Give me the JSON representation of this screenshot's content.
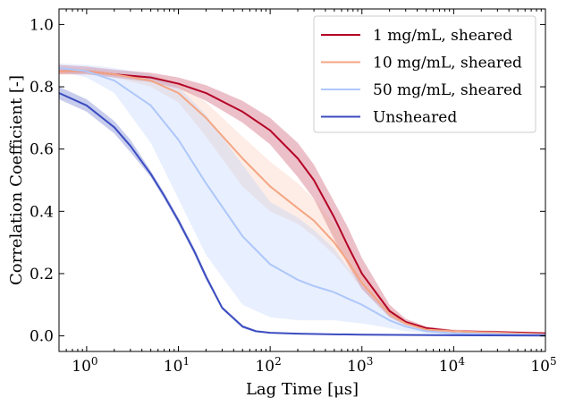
{
  "chart_data": {
    "type": "line",
    "xlabel": "Lag Time [μs]",
    "ylabel": "Correlation Coefficient [-]",
    "xscale": "log",
    "xlim": [
      0.5,
      100000
    ],
    "ylim": [
      -0.05,
      1.05
    ],
    "x_ticks": [
      1,
      10,
      100,
      1000,
      10000,
      100000
    ],
    "x_tick_labels": [
      {
        "base": "10",
        "exp": "0"
      },
      {
        "base": "10",
        "exp": "1"
      },
      {
        "base": "10",
        "exp": "2"
      },
      {
        "base": "10",
        "exp": "3"
      },
      {
        "base": "10",
        "exp": "4"
      },
      {
        "base": "10",
        "exp": "5"
      }
    ],
    "y_ticks": [
      0.0,
      0.2,
      0.4,
      0.6,
      0.8,
      1.0
    ],
    "y_tick_labels": [
      "0.0",
      "0.2",
      "0.4",
      "0.6",
      "0.8",
      "1.0"
    ],
    "grid": false,
    "legend_position": "top-right",
    "series": [
      {
        "name": "1 mg/mL, sheared",
        "color": "#b40426",
        "band_opacity": 0.25,
        "x": [
          0.5,
          1,
          2,
          5,
          10,
          20,
          50,
          100,
          200,
          300,
          500,
          700,
          1000,
          2000,
          3000,
          5000,
          10000,
          30000,
          100000
        ],
        "y": [
          0.85,
          0.85,
          0.84,
          0.83,
          0.81,
          0.78,
          0.72,
          0.66,
          0.57,
          0.5,
          0.38,
          0.29,
          0.2,
          0.08,
          0.045,
          0.025,
          0.015,
          0.012,
          0.008
        ],
        "lower": [
          0.84,
          0.84,
          0.83,
          0.815,
          0.795,
          0.755,
          0.685,
          0.615,
          0.51,
          0.44,
          0.31,
          0.23,
          0.15,
          0.06,
          0.035,
          0.02,
          0.012,
          0.008,
          0.004
        ],
        "upper": [
          0.87,
          0.865,
          0.855,
          0.845,
          0.83,
          0.805,
          0.755,
          0.7,
          0.62,
          0.55,
          0.43,
          0.35,
          0.25,
          0.1,
          0.055,
          0.03,
          0.02,
          0.016,
          0.012
        ]
      },
      {
        "name": "10 mg/mL, sheared",
        "color": "#f4a582",
        "band_opacity": 0.2,
        "x": [
          0.5,
          1,
          2,
          5,
          10,
          20,
          50,
          100,
          200,
          300,
          500,
          700,
          1000,
          2000,
          3000,
          5000,
          10000,
          100000
        ],
        "y": [
          0.85,
          0.85,
          0.84,
          0.82,
          0.78,
          0.7,
          0.57,
          0.48,
          0.41,
          0.37,
          0.3,
          0.24,
          0.17,
          0.07,
          0.04,
          0.02,
          0.015,
          0.005
        ],
        "lower": [
          0.84,
          0.84,
          0.83,
          0.8,
          0.75,
          0.64,
          0.48,
          0.4,
          0.36,
          0.32,
          0.26,
          0.21,
          0.15,
          0.06,
          0.03,
          0.015,
          0.01,
          0.003
        ],
        "upper": [
          0.86,
          0.86,
          0.85,
          0.84,
          0.81,
          0.75,
          0.64,
          0.56,
          0.49,
          0.44,
          0.36,
          0.29,
          0.2,
          0.09,
          0.05,
          0.025,
          0.018,
          0.007
        ]
      },
      {
        "name": "50 mg/mL, sheared",
        "color": "#aec7fa",
        "band_opacity": 0.28,
        "x": [
          0.5,
          1,
          2,
          5,
          10,
          20,
          50,
          100,
          200,
          300,
          500,
          700,
          1000,
          2000,
          3000,
          5000,
          10000,
          100000
        ],
        "y": [
          0.86,
          0.85,
          0.82,
          0.74,
          0.63,
          0.49,
          0.32,
          0.23,
          0.18,
          0.16,
          0.14,
          0.12,
          0.1,
          0.05,
          0.03,
          0.015,
          0.008,
          0.003
        ],
        "lower": [
          0.85,
          0.83,
          0.78,
          0.62,
          0.44,
          0.26,
          0.1,
          0.06,
          0.05,
          0.05,
          0.05,
          0.045,
          0.04,
          0.025,
          0.015,
          0.008,
          0.005,
          0.002
        ],
        "upper": [
          0.875,
          0.87,
          0.86,
          0.84,
          0.8,
          0.71,
          0.55,
          0.43,
          0.38,
          0.34,
          0.28,
          0.22,
          0.17,
          0.08,
          0.05,
          0.025,
          0.012,
          0.005
        ]
      },
      {
        "name": "Unsheared",
        "color": "#3b4cc0",
        "band_opacity": 0.28,
        "x": [
          0.5,
          1,
          2,
          3,
          5,
          7,
          10,
          15,
          20,
          30,
          50,
          70,
          100,
          200,
          500,
          1000,
          10000,
          100000
        ],
        "y": [
          0.78,
          0.74,
          0.67,
          0.61,
          0.52,
          0.45,
          0.37,
          0.27,
          0.19,
          0.09,
          0.03,
          0.015,
          0.01,
          0.007,
          0.005,
          0.004,
          0.002,
          0.001
        ],
        "lower": [
          0.76,
          0.72,
          0.65,
          0.59,
          0.51,
          0.44,
          0.36,
          0.26,
          0.18,
          0.085,
          0.025,
          0.012,
          0.008,
          0.006,
          0.004,
          0.003,
          0.001,
          0.0
        ],
        "upper": [
          0.8,
          0.76,
          0.69,
          0.63,
          0.53,
          0.46,
          0.38,
          0.28,
          0.2,
          0.095,
          0.035,
          0.018,
          0.012,
          0.009,
          0.006,
          0.005,
          0.003,
          0.002
        ]
      }
    ]
  }
}
